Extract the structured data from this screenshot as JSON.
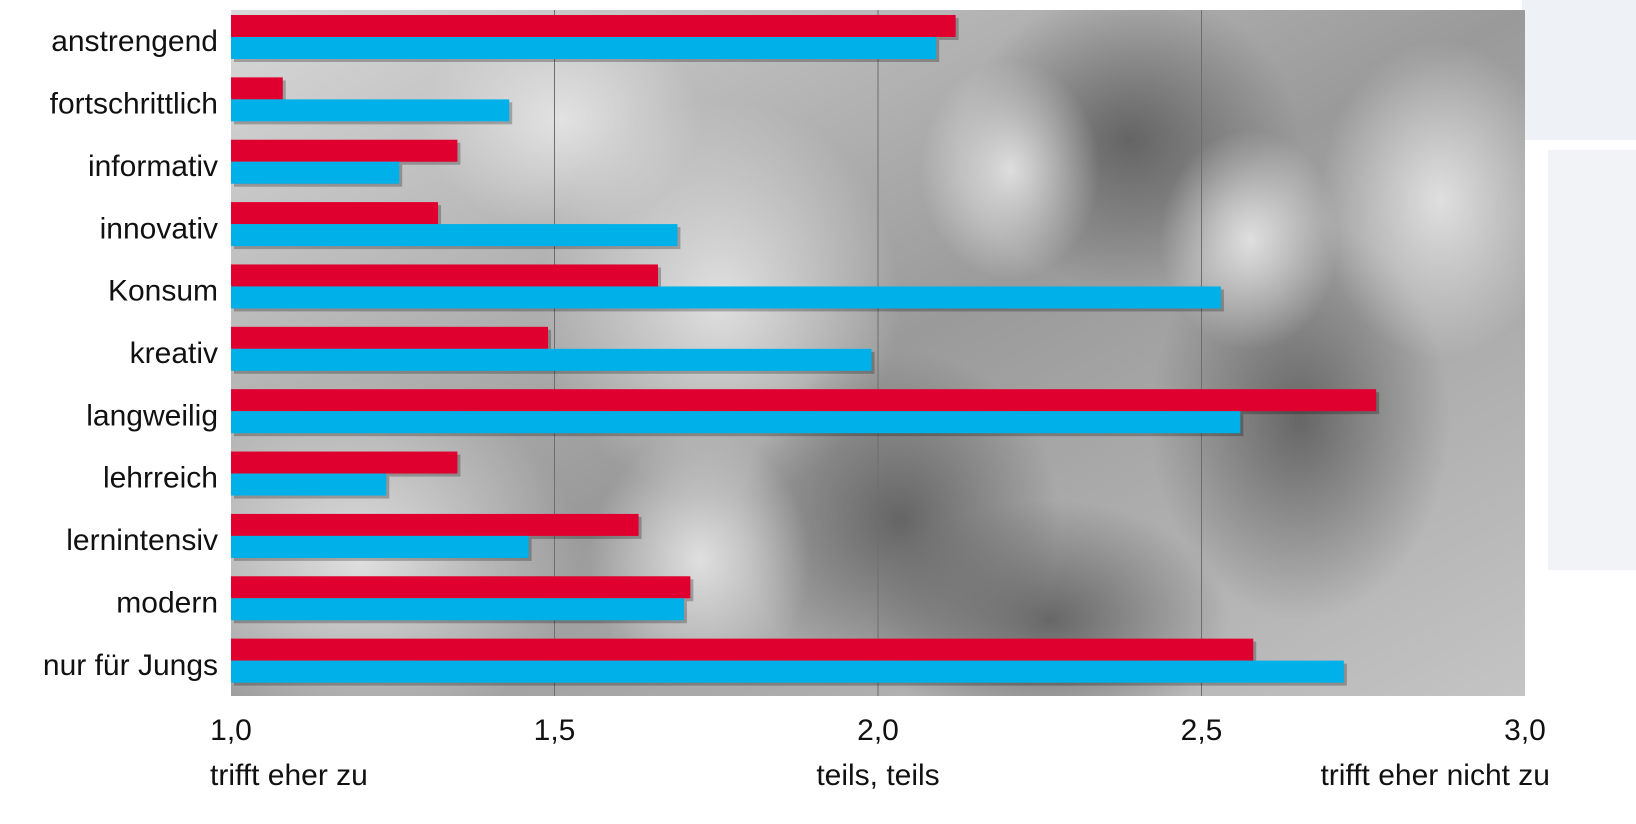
{
  "chart_data": {
    "type": "bar",
    "orientation": "horizontal",
    "categories": [
      "anstrengend",
      "fortschrittlich",
      "informativ",
      "innovativ",
      "Konsum",
      "kreativ",
      "langweilig",
      "lehrreich",
      "lernintensiv",
      "modern",
      "nur für Jungs"
    ],
    "series": [
      {
        "color": "#e0002f",
        "values": [
          2.12,
          1.08,
          1.35,
          1.32,
          1.66,
          1.49,
          2.77,
          1.35,
          1.63,
          1.71,
          2.58
        ]
      },
      {
        "color": "#00b0e8",
        "values": [
          2.09,
          1.43,
          1.26,
          1.69,
          2.53,
          1.99,
          2.56,
          1.24,
          1.46,
          1.7,
          2.72
        ]
      }
    ],
    "xlim": [
      1.0,
      3.0
    ],
    "xticks": [
      "1,0",
      "1,5",
      "2,0",
      "2,5",
      "3,0"
    ],
    "xtick_values": [
      1.0,
      1.5,
      2.0,
      2.5,
      3.0
    ],
    "scale_labels": [
      "trifft eher zu",
      "teils, teils",
      "trifft eher nicht zu"
    ],
    "grid": true,
    "background": "grayscale crowd photo of young people"
  }
}
